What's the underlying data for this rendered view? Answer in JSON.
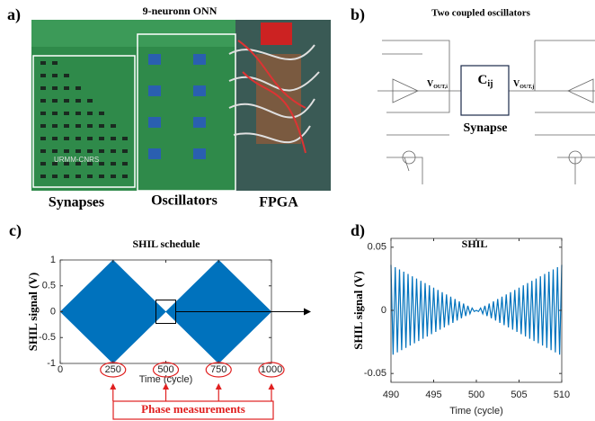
{
  "panel_a": {
    "label": "a)",
    "title": "9-neuronn ONN",
    "captions": [
      "Synapses",
      "Oscillators",
      "FPGA"
    ]
  },
  "panel_b": {
    "label": "b)",
    "title": "Two coupled oscillators",
    "capacitor": {
      "main": "C",
      "sub": "ij"
    },
    "v_out_i": {
      "main": "V",
      "sub": "OUT,i"
    },
    "v_out_j": {
      "main": "V",
      "sub": "OUT,j"
    },
    "synapse": "Synapse"
  },
  "chart_data": [
    {
      "type": "area",
      "panel_label": "c)",
      "title": "SHIL schedule",
      "x_label": "Time (cycle)",
      "y_label": "SHIL signal (V)",
      "x": [
        0,
        250,
        500,
        750,
        1000
      ],
      "series": [
        {
          "color": "#0072bd",
          "values": [
            0,
            1,
            0,
            1,
            0
          ]
        },
        {
          "color": "#0072bd",
          "values": [
            0,
            -1,
            0,
            -1,
            0
          ]
        }
      ],
      "xlim": [
        0,
        1000
      ],
      "xticks": [
        0,
        250,
        500,
        750,
        1000
      ],
      "ylim": [
        -1,
        1
      ],
      "yticks": [
        -1,
        -0.5,
        0,
        0.5,
        1
      ],
      "annotation": "Phase measurements"
    },
    {
      "type": "line",
      "panel_label": "d)",
      "title": "SHIL",
      "x_label": "Time (cycle)",
      "y_label": "SHIL signal (V)",
      "x": [
        490,
        490.25,
        490.5,
        490.75,
        491,
        491.25,
        491.5,
        491.75,
        492,
        492.25,
        492.5,
        492.75,
        493,
        493.25,
        493.5,
        493.75,
        494,
        494.25,
        494.5,
        494.75,
        495,
        495.25,
        495.5,
        495.75,
        496,
        496.25,
        496.5,
        496.75,
        497,
        497.25,
        497.5,
        497.75,
        498,
        498.25,
        498.5,
        498.75,
        499,
        499.25,
        499.5,
        499.75,
        500,
        500.25,
        500.5,
        500.75,
        501,
        501.25,
        501.5,
        501.75,
        502,
        502.25,
        502.5,
        502.75,
        503,
        503.25,
        503.5,
        503.75,
        504,
        504.25,
        504.5,
        504.75,
        505,
        505.25,
        505.5,
        505.75,
        506,
        506.25,
        506.5,
        506.75,
        507,
        507.25,
        507.5,
        507.75,
        508,
        508.25,
        508.5,
        508.75,
        509,
        509.25,
        509.5,
        509.75,
        510
      ],
      "series": [
        {
          "color": "#0072bd",
          "values": [
            0.036,
            -0.0351,
            0.0342,
            -0.0333,
            0.0324,
            -0.0315,
            0.0306,
            -0.0297,
            0.0288,
            -0.0279,
            0.027,
            -0.0261,
            0.0252,
            -0.0243,
            0.0234,
            -0.0225,
            0.0216,
            -0.0207,
            0.0198,
            -0.0189,
            0.018,
            -0.0171,
            0.0162,
            -0.0153,
            0.0144,
            -0.0135,
            0.0126,
            -0.0117,
            0.0108,
            -0.0099,
            0.009,
            -0.0081,
            0.0072,
            -0.0063,
            0.0054,
            -0.0045,
            0.0036,
            -0.0027,
            0.0018,
            -0.0009,
            0,
            -0.0009,
            0.0018,
            -0.0027,
            0.0036,
            -0.0045,
            0.0054,
            -0.0063,
            0.0072,
            -0.0081,
            0.009,
            -0.0099,
            0.0108,
            -0.0117,
            0.0126,
            -0.0135,
            0.0144,
            -0.0153,
            0.0162,
            -0.0171,
            0.018,
            -0.0189,
            0.0198,
            -0.0207,
            0.0216,
            -0.0225,
            0.0234,
            -0.0243,
            0.0252,
            -0.0261,
            0.027,
            -0.0279,
            0.0288,
            -0.0297,
            0.0306,
            -0.0315,
            0.0324,
            -0.0333,
            0.0342,
            -0.0351,
            0.036
          ]
        }
      ],
      "xlim": [
        490,
        510
      ],
      "xticks": [
        490,
        495,
        500,
        505,
        510
      ],
      "ylim": [
        -0.057,
        0.057
      ],
      "yticks": [
        -0.05,
        0,
        0.05
      ]
    }
  ]
}
